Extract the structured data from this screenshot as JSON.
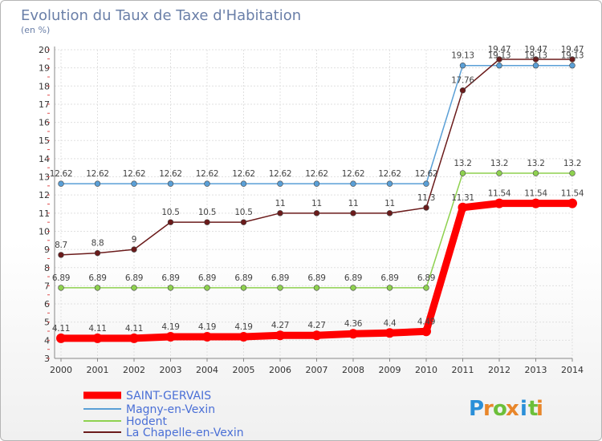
{
  "header": {
    "title": "Evolution du Taux de Taxe d'Habitation",
    "subtitle": "(en %)"
  },
  "logo": {
    "text": "Proxiti"
  },
  "chart_data": {
    "type": "line",
    "title": "Evolution du Taux de Taxe d'Habitation",
    "subtitle": "(en %)",
    "xlabel": "",
    "ylabel": "",
    "x": [
      "2000",
      "2001",
      "2002",
      "2003",
      "2004",
      "2005",
      "2006",
      "2007",
      "2008",
      "2009",
      "2010",
      "2011",
      "2012",
      "2013",
      "2014"
    ],
    "ylim": [
      3,
      20
    ],
    "yticks": [
      3,
      4,
      5,
      6,
      7,
      8,
      9,
      10,
      11,
      12,
      13,
      14,
      15,
      16,
      17,
      18,
      19,
      20
    ],
    "grid": true,
    "legend_position": "bottom-left",
    "series": [
      {
        "name": "SAINT-GERVAIS",
        "color": "#ff0000",
        "values": [
          4.11,
          4.11,
          4.11,
          4.19,
          4.19,
          4.19,
          4.27,
          4.27,
          4.36,
          4.4,
          4.49,
          11.31,
          11.54,
          11.54,
          11.54
        ],
        "labels": [
          "4.11",
          "4.11",
          "4.11",
          "4.19",
          "4.19",
          "4.19",
          "4.27",
          "4.27",
          "4.36",
          "4.4",
          "4.49",
          "11.31",
          "11.54",
          "11.54",
          "11.54"
        ]
      },
      {
        "name": "Magny-en-Vexin",
        "color": "#5a9fd6",
        "values": [
          12.62,
          12.62,
          12.62,
          12.62,
          12.62,
          12.62,
          12.62,
          12.62,
          12.62,
          12.62,
          12.62,
          19.13,
          19.13,
          19.13,
          19.13
        ],
        "labels": [
          "12.62",
          "12.62",
          "12.62",
          "12.62",
          "12.62",
          "12.62",
          "12.62",
          "12.62",
          "12.62",
          "12.62",
          "12.62",
          "19.13",
          "19.13",
          "19.13",
          "19.13"
        ]
      },
      {
        "name": "Hodent",
        "color": "#8ed14f",
        "values": [
          6.89,
          6.89,
          6.89,
          6.89,
          6.89,
          6.89,
          6.89,
          6.89,
          6.89,
          6.89,
          6.89,
          13.2,
          13.2,
          13.2,
          13.2
        ],
        "labels": [
          "6.89",
          "6.89",
          "6.89",
          "6.89",
          "6.89",
          "6.89",
          "6.89",
          "6.89",
          "6.89",
          "6.89",
          "6.89",
          "13.2",
          "13.2",
          "13.2",
          "13.2"
        ]
      },
      {
        "name": "La Chapelle-en-Vexin",
        "color": "#6b1b1b",
        "values": [
          8.7,
          8.8,
          9,
          10.5,
          10.5,
          10.5,
          11,
          11,
          11,
          11,
          11.3,
          17.76,
          19.47,
          19.47,
          19.47
        ],
        "labels": [
          "8.7",
          "8.8",
          "9",
          "10.5",
          "10.5",
          "10.5",
          "11",
          "11",
          "11",
          "11",
          "11.3",
          "17.76",
          "19.47",
          "19.47",
          "19.47"
        ]
      }
    ]
  }
}
